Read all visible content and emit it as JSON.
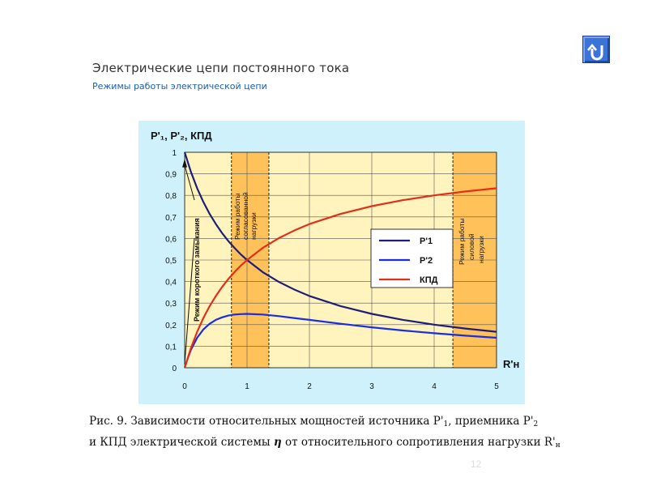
{
  "header": {
    "title": "Электрические цепи постоянного тока",
    "subtitle": "Режимы работы электрической цепи"
  },
  "nav": {
    "return_icon": "u-turn-return-icon",
    "color": "#3c73d8"
  },
  "chart_data": {
    "type": "line",
    "ylabel": "P'₁, P'₂, КПД",
    "xlabel": "R'н",
    "xlim": [
      0,
      5
    ],
    "ylim": [
      0,
      1
    ],
    "x_ticks": [
      "0",
      "1",
      "2",
      "3",
      "4",
      "5"
    ],
    "y_ticks": [
      "0",
      "0,1",
      "0,2",
      "0,3",
      "0,4",
      "0,5",
      "0,6",
      "0,7",
      "0,8",
      "0,9",
      "1"
    ],
    "grid": true,
    "legend_position": "center-right",
    "background_color": "#fff3be",
    "regions": [
      {
        "label": "Режим короткого замыкания",
        "x": [
          0,
          0.05
        ]
      },
      {
        "label": "Режим работы согласованной нагрузки",
        "x": [
          0.75,
          1.35
        ],
        "color": "#ffc25a"
      },
      {
        "label": "Режим работы силовой нагрузки",
        "x": [
          4.3,
          5
        ],
        "color": "#ffc25a"
      }
    ],
    "series": [
      {
        "name": "P'1",
        "color": "#1e1e7a",
        "x": [
          0,
          0.1,
          0.2,
          0.3,
          0.4,
          0.5,
          0.6,
          0.7,
          0.8,
          0.9,
          1,
          1.25,
          1.5,
          1.75,
          2,
          2.5,
          3,
          3.5,
          4,
          4.5,
          5
        ],
        "values": [
          1.0,
          0.909,
          0.833,
          0.769,
          0.714,
          0.667,
          0.625,
          0.588,
          0.556,
          0.526,
          0.5,
          0.444,
          0.4,
          0.364,
          0.333,
          0.286,
          0.25,
          0.222,
          0.2,
          0.182,
          0.167
        ]
      },
      {
        "name": "P'2",
        "color": "#1a2ee0",
        "x": [
          0,
          0.05,
          0.1,
          0.2,
          0.3,
          0.4,
          0.5,
          0.6,
          0.7,
          0.8,
          0.9,
          1,
          1.25,
          1.5,
          1.75,
          2,
          2.5,
          3,
          3.5,
          4,
          4.5,
          5
        ],
        "values": [
          0,
          0.045,
          0.083,
          0.139,
          0.178,
          0.204,
          0.222,
          0.234,
          0.242,
          0.247,
          0.249,
          0.25,
          0.247,
          0.24,
          0.231,
          0.222,
          0.204,
          0.1875,
          0.173,
          0.16,
          0.149,
          0.139
        ]
      },
      {
        "name": "КПД",
        "color": "#e0301a",
        "x": [
          0,
          0.1,
          0.2,
          0.3,
          0.4,
          0.5,
          0.6,
          0.7,
          0.8,
          0.9,
          1,
          1.25,
          1.5,
          1.75,
          2,
          2.5,
          3,
          3.5,
          4,
          4.5,
          5
        ],
        "values": [
          0,
          0.091,
          0.167,
          0.231,
          0.286,
          0.333,
          0.375,
          0.412,
          0.444,
          0.474,
          0.5,
          0.556,
          0.6,
          0.636,
          0.667,
          0.714,
          0.75,
          0.778,
          0.8,
          0.818,
          0.833
        ]
      }
    ]
  },
  "caption": {
    "line1_pre": "Рис. 9. Зависимости относительных мощностей источника P'",
    "line1_sub1": "1",
    "line1_mid": ", приемника P'",
    "line1_sub2": "2",
    "line2_pre": "и КПД электрической системы ",
    "line2_eta": "η",
    "line2_mid": " от относительного сопротивления нагрузки R'",
    "line2_sub": "н"
  },
  "page_number": "12"
}
